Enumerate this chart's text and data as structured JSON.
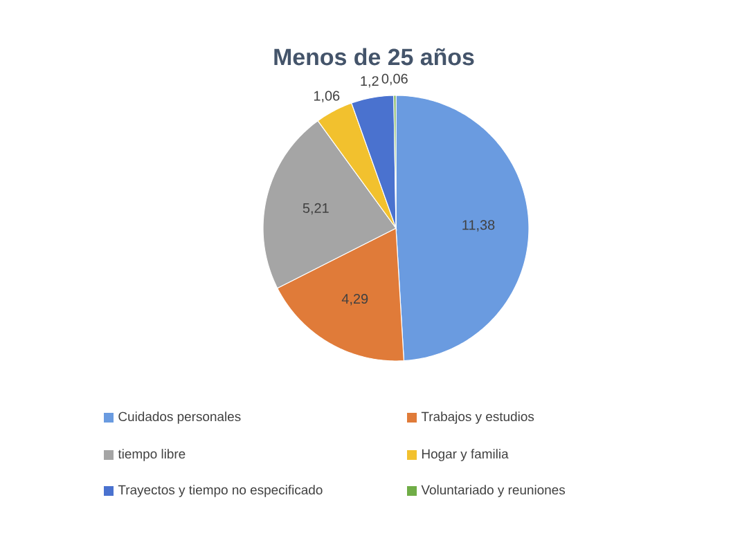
{
  "chart_data": {
    "type": "pie",
    "title": "Menos de 25 años",
    "categories": [
      "Cuidados personales",
      "Trabajos y estudios",
      "tiempo libre",
      "Hogar y familia",
      "Trayectos y tiempo no especificado",
      "Voluntariado y reuniones"
    ],
    "values": [
      11.38,
      4.29,
      5.21,
      1.06,
      1.2,
      0.06
    ],
    "value_labels": [
      "11,38",
      "4,29",
      "5,21",
      "1,06",
      "1,2",
      "0,06"
    ],
    "colors": [
      "#6a9be0",
      "#e07b39",
      "#a5a5a5",
      "#f2c12e",
      "#4a72cf",
      "#70ad47"
    ],
    "legend": "bottom"
  }
}
